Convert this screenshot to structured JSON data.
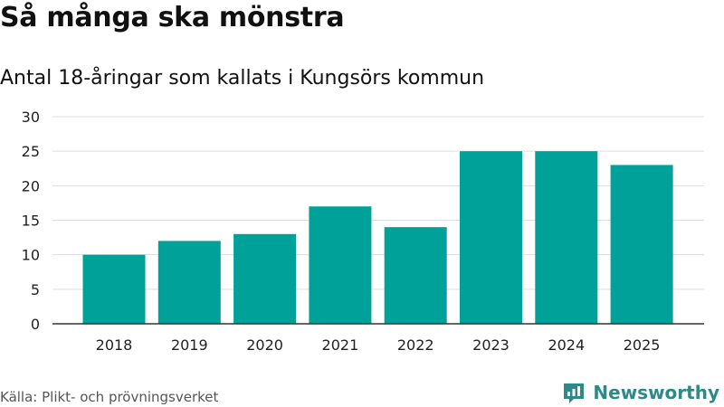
{
  "title": "Så många ska mönstra",
  "subtitle": "Antal 18-åringar som kallats i Kungsörs kommun",
  "source": "Källa: Plikt- och prövningsverket",
  "brand": {
    "name": "Newsworthy",
    "icon": "newsworthy-logo-icon",
    "color": "#2d8a88"
  },
  "chart_data": {
    "type": "bar",
    "title": "Så många ska mönstra",
    "subtitle": "Antal 18-åringar som kallats i Kungsörs kommun",
    "categories": [
      "2018",
      "2019",
      "2020",
      "2021",
      "2022",
      "2023",
      "2024",
      "2025"
    ],
    "values": [
      10,
      12,
      13,
      17,
      14,
      25,
      25,
      23
    ],
    "xlabel": "",
    "ylabel": "",
    "ylim": [
      0,
      30
    ],
    "yticks": [
      0,
      5,
      10,
      15,
      20,
      25,
      30
    ],
    "grid": true,
    "bar_color": "#00a199"
  }
}
